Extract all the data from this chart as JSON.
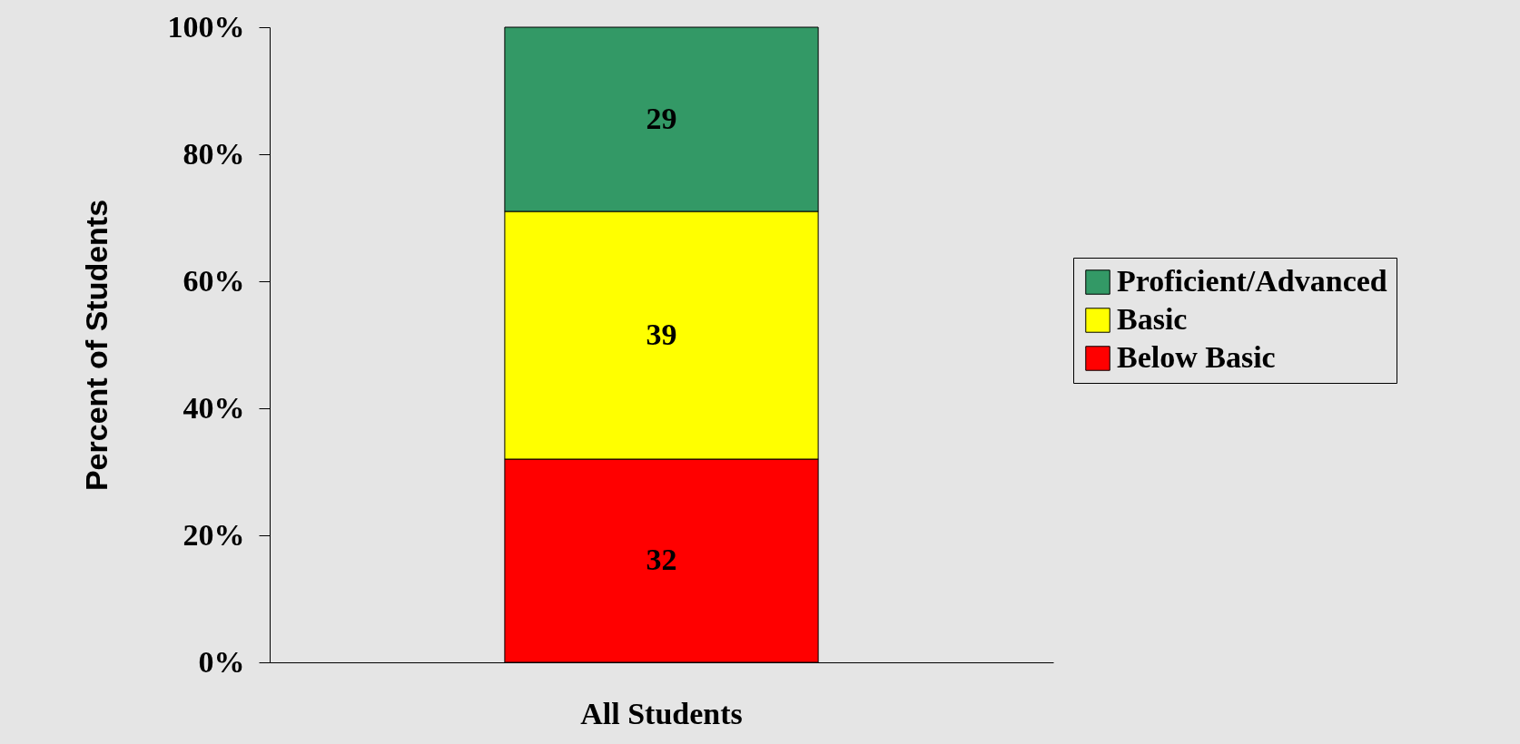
{
  "chart_data": {
    "type": "bar",
    "ylabel": "Percent of Students",
    "categories": [
      "All Students"
    ],
    "stacked": true,
    "series": [
      {
        "name": "Below Basic",
        "color": "#ff0000",
        "values": [
          32
        ]
      },
      {
        "name": "Basic",
        "color": "#ffff00",
        "values": [
          39
        ]
      },
      {
        "name": "Proficient/Advanced",
        "color": "#339966",
        "values": [
          29
        ]
      }
    ],
    "ylim": [
      0,
      100
    ],
    "yticks": [
      {
        "value": 0,
        "label": "0%"
      },
      {
        "value": 20,
        "label": "20%"
      },
      {
        "value": 40,
        "label": "40%"
      },
      {
        "value": 60,
        "label": "60%"
      },
      {
        "value": 80,
        "label": "80%"
      },
      {
        "value": 100,
        "label": "100%"
      }
    ],
    "data_labels": true,
    "legend": "right",
    "grid": false
  }
}
